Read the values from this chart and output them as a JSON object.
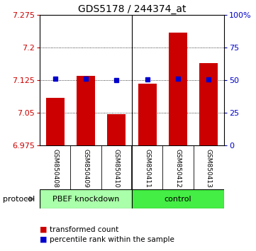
{
  "title": "GDS5178 / 244374_at",
  "samples": [
    "GSM850408",
    "GSM850409",
    "GSM850410",
    "GSM850411",
    "GSM850412",
    "GSM850413"
  ],
  "bar_values": [
    7.085,
    7.135,
    7.048,
    7.118,
    7.235,
    7.165
  ],
  "percentile_values": [
    7.128,
    7.128,
    7.126,
    7.127,
    7.128,
    7.127
  ],
  "bar_color": "#cc0000",
  "percentile_color": "#0000cc",
  "y_min": 6.975,
  "y_max": 7.275,
  "y_ticks": [
    6.975,
    7.05,
    7.125,
    7.2,
    7.275
  ],
  "y_right_ticks": [
    0,
    25,
    50,
    75,
    100
  ],
  "y_right_labels": [
    "0",
    "25",
    "50",
    "75",
    "100%"
  ],
  "group_bg_color": "#cccccc",
  "pbef_color": "#aaffaa",
  "ctrl_color": "#44ee44",
  "protocol_label": "protocol",
  "legend_items": [
    {
      "color": "#cc0000",
      "label": "transformed count"
    },
    {
      "color": "#0000cc",
      "label": "percentile rank within the sample"
    }
  ],
  "background_color": "#ffffff"
}
